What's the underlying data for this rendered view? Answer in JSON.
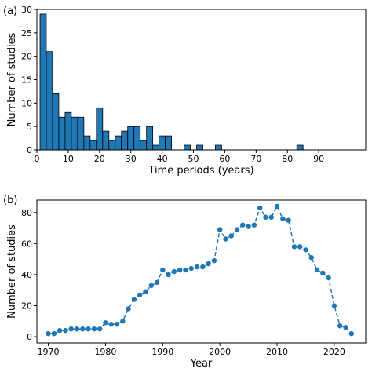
{
  "chart_data": [
    {
      "type": "histogram",
      "title": "(a)",
      "xlabel": "Time periods (years)",
      "ylabel": "Number of studies",
      "bins": [
        1,
        3,
        5,
        7,
        9,
        11,
        13,
        15,
        17,
        19,
        21,
        23,
        25,
        27,
        29,
        31,
        33,
        35,
        37,
        39,
        41,
        43,
        45,
        47,
        49,
        51,
        53,
        55,
        57,
        59,
        61,
        63,
        65,
        67,
        69,
        71,
        73,
        75,
        77,
        79,
        81,
        83,
        85
      ],
      "values": [
        29,
        21,
        12,
        7,
        8,
        7,
        7,
        3,
        2,
        9,
        4,
        2,
        3,
        4,
        5,
        5,
        2,
        5,
        1,
        3,
        3,
        0,
        0,
        1,
        0,
        1,
        0,
        0,
        1,
        0,
        0,
        0,
        0,
        0,
        0,
        0,
        0,
        0,
        0,
        0,
        0,
        1
      ],
      "color": "#1f77b4",
      "xlim": [
        0,
        105
      ],
      "xticks": [
        0,
        10,
        20,
        30,
        40,
        50,
        60,
        70,
        80,
        90
      ],
      "ylim": [
        0,
        30
      ],
      "yticks": [
        0,
        5,
        10,
        15,
        20,
        25,
        30
      ]
    },
    {
      "type": "line",
      "title": "(b)",
      "xlabel": "Year",
      "ylabel": "Number of studies",
      "x": [
        1970,
        1971,
        1972,
        1973,
        1974,
        1975,
        1976,
        1977,
        1978,
        1979,
        1980,
        1981,
        1982,
        1983,
        1984,
        1985,
        1986,
        1987,
        1988,
        1989,
        1990,
        1991,
        1992,
        1993,
        1994,
        1995,
        1996,
        1997,
        1998,
        1999,
        2000,
        2001,
        2002,
        2003,
        2004,
        2005,
        2006,
        2007,
        2008,
        2009,
        2010,
        2011,
        2012,
        2013,
        2014,
        2015,
        2016,
        2017,
        2018,
        2019,
        2020,
        2021,
        2022,
        2023
      ],
      "values": [
        2,
        2,
        4,
        4,
        5,
        5,
        5,
        5,
        5,
        5,
        9,
        8,
        8,
        10,
        18,
        24,
        27,
        29,
        33,
        35,
        43,
        40,
        42,
        43,
        43,
        44,
        45,
        45,
        47,
        49,
        69,
        63,
        65,
        69,
        72,
        71,
        72,
        83,
        77,
        77,
        84,
        76,
        75,
        58,
        58,
        56,
        51,
        43,
        41,
        38,
        20,
        7,
        6,
        2
      ],
      "color": "#1f77b4",
      "xlim": [
        1968,
        2025.5
      ],
      "xticks": [
        1970,
        1980,
        1990,
        2000,
        2010,
        2020
      ],
      "ylim": [
        -4,
        88
      ],
      "yticks": [
        0,
        20,
        40,
        60,
        80
      ]
    }
  ]
}
